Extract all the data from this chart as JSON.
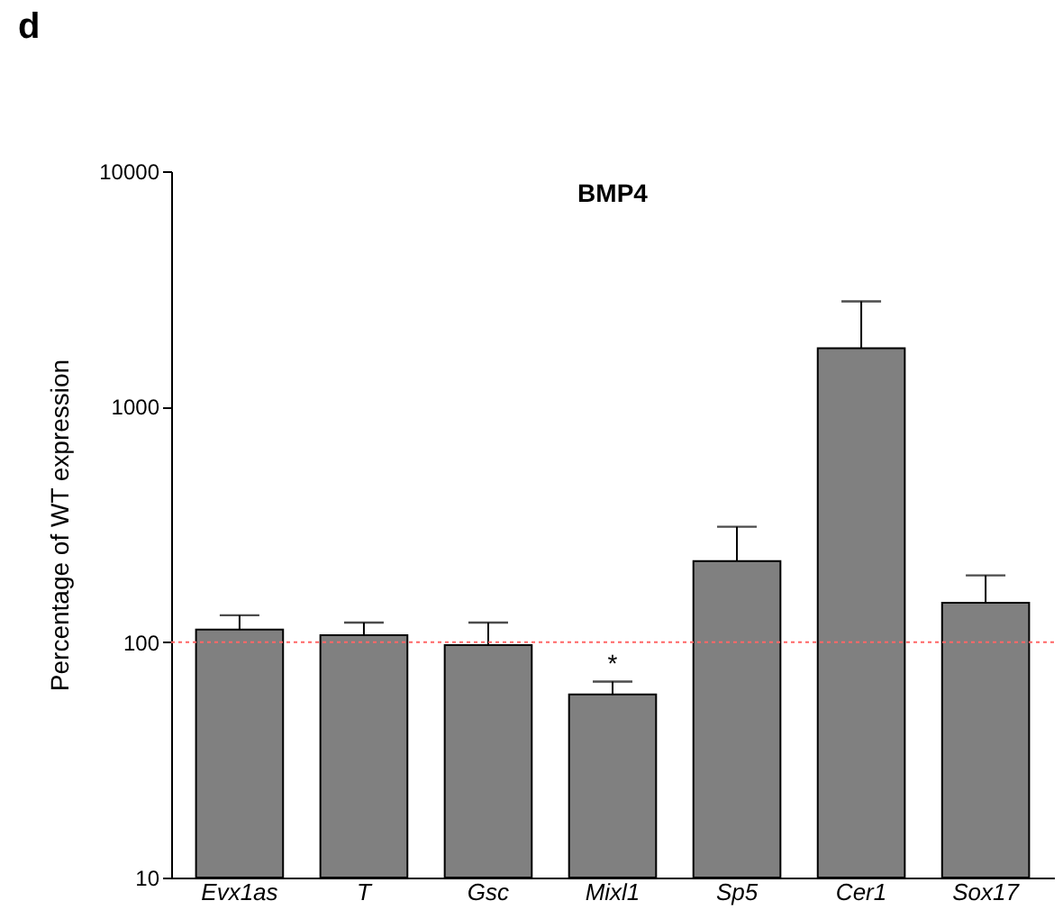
{
  "chart_data": {
    "type": "bar",
    "title": "BMP4",
    "ylabel": "Percentage of WT expression",
    "categories": [
      "Evx1as",
      "T",
      "Gsc",
      "Mixl1",
      "Sp5",
      "Cer1",
      "Sox17"
    ],
    "values": [
      113,
      107,
      97,
      60,
      221,
      1770,
      147
    ],
    "errors": [
      [
        113,
        130
      ],
      [
        107,
        121
      ],
      [
        97,
        121
      ],
      [
        60,
        68
      ],
      [
        221,
        309
      ],
      [
        1770,
        2800
      ],
      [
        147,
        192
      ]
    ],
    "color": "#808080",
    "log": true,
    "ylim": [
      10,
      10000
    ],
    "yticks": [
      10,
      100,
      1000,
      10000
    ],
    "grid": false,
    "ref_lines": [
      {
        "axis": "y",
        "value": 100,
        "color": "#ff6666",
        "line_style": "dotted"
      }
    ],
    "annotations": [
      "d",
      {
        "text": "*",
        "x": "Mixl1",
        "y": 68
      }
    ]
  }
}
